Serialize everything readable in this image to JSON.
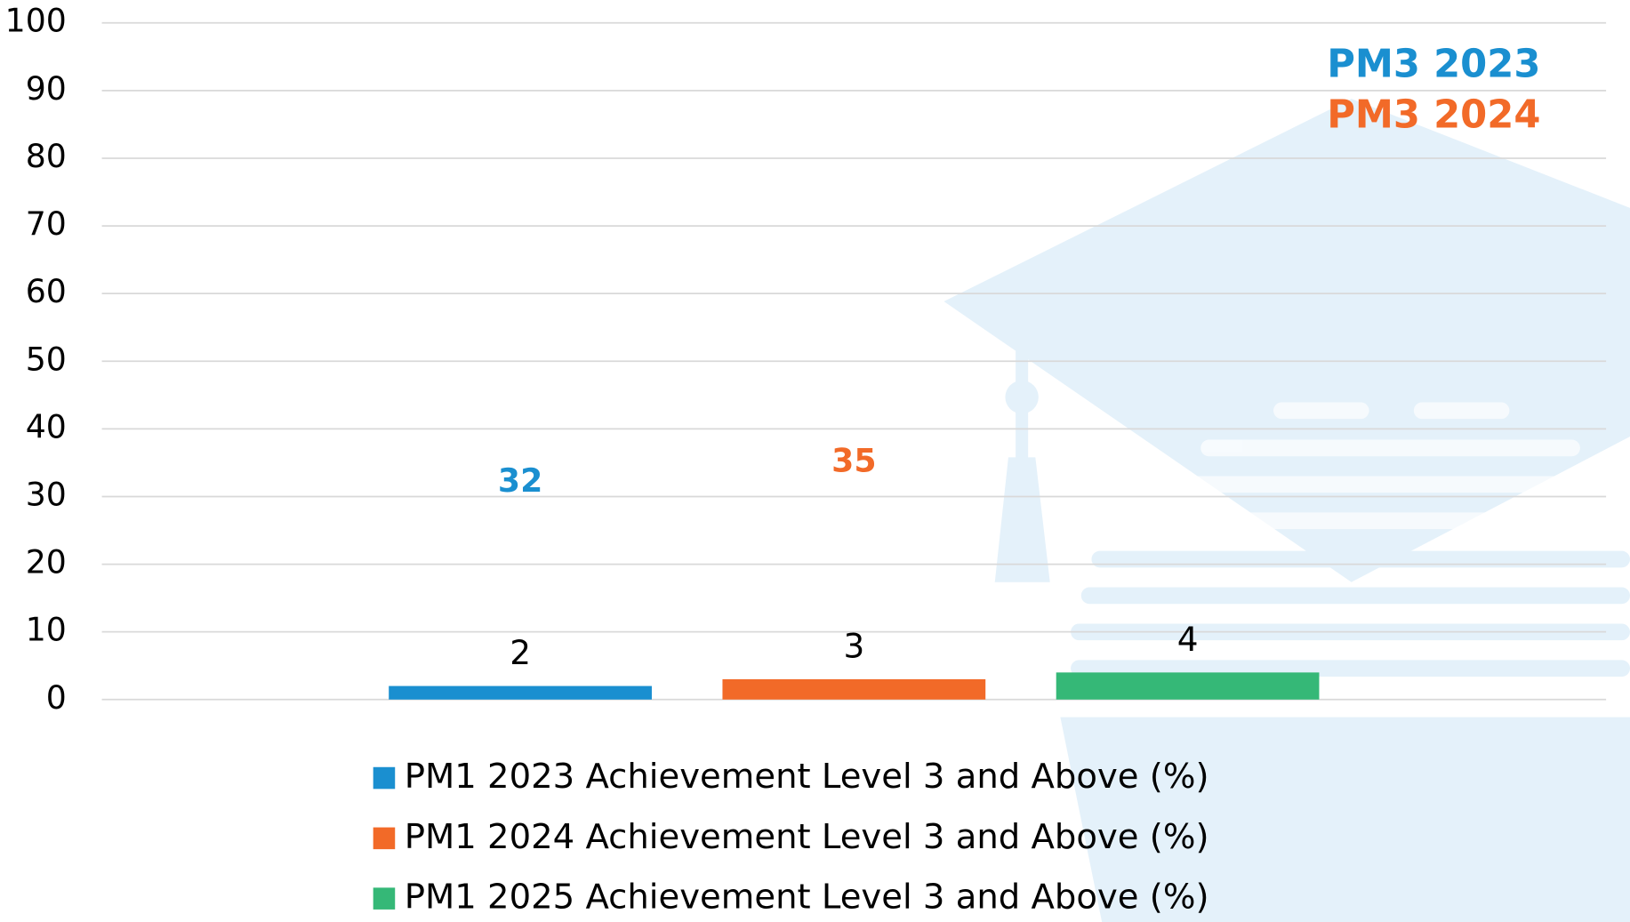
{
  "chart_data": {
    "type": "bar",
    "categories": [
      null
    ],
    "series": [
      {
        "name": "PM1 2023 Achievement Level 3 and Above (%)",
        "color": "#1a8fd0",
        "values": [
          2
        ]
      },
      {
        "name": "PM1 2024 Achievement Level 3 and Above (%)",
        "color": "#f26a28",
        "values": [
          3
        ]
      },
      {
        "name": "PM1 2025 Achievement Level 3 and Above (%)",
        "color": "#35b877",
        "values": [
          4
        ]
      }
    ],
    "ylim": [
      0,
      100
    ],
    "yticks": [
      0,
      10,
      20,
      30,
      40,
      50,
      60,
      70,
      80,
      90,
      100
    ],
    "grid": true,
    "legend": "bottom",
    "annotations": [
      {
        "value": 32,
        "color": "#1a8fd0"
      },
      {
        "value": 35,
        "color": "#f26a28"
      }
    ],
    "notes": [
      {
        "text": "PM3 2023",
        "color": "#1a8fd0"
      },
      {
        "text": "PM3 2024",
        "color": "#f26a28"
      }
    ]
  }
}
